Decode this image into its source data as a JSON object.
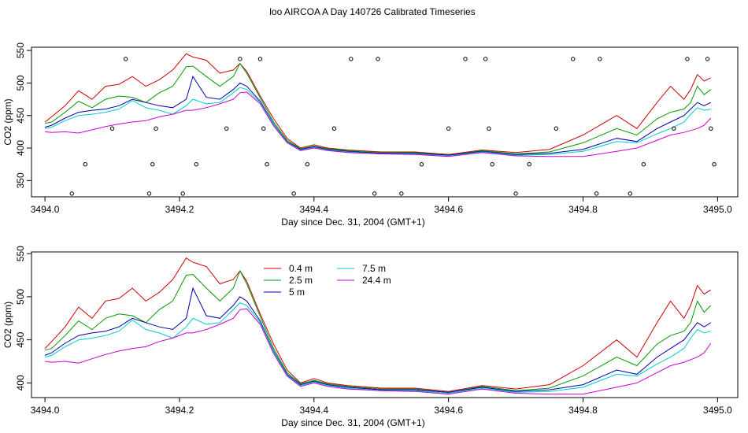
{
  "title": "loo AIRCOA A  Day 140726  Calibrated Timeseries",
  "x_ticks": [
    3494.0,
    3494.2,
    3494.4,
    3494.6,
    3494.8,
    3495.0
  ],
  "x_tick_labels": [
    "3494.0",
    "3494.2",
    "3494.4",
    "3494.6",
    "3494.8",
    "3495.0"
  ],
  "series_colors": {
    "0.4 m": "#cc0000",
    "2.5 m": "#009900",
    "5 m": "#0000aa",
    "7.5 m": "#00cccc",
    "24.4 m": "#cc00cc"
  },
  "chart_data": [
    {
      "type": "line",
      "title": "loo AIRCOA A  Day 140726  Calibrated Timeseries",
      "xlabel": "Day since Dec. 31, 2004 (GMT+1)",
      "ylabel": "CO2 (ppm)",
      "xlim": [
        3493.98,
        3495.03
      ],
      "ylim": [
        325,
        555
      ],
      "y_ticks": [
        350,
        400,
        450,
        500,
        550
      ],
      "y_tick_labels": [
        "350",
        "400",
        "450",
        "500",
        "550"
      ],
      "grid": false,
      "x": [
        3494.0,
        3494.01,
        3494.03,
        3494.05,
        3494.07,
        3494.09,
        3494.11,
        3494.13,
        3494.15,
        3494.17,
        3494.19,
        3494.21,
        3494.22,
        3494.24,
        3494.26,
        3494.28,
        3494.29,
        3494.3,
        3494.32,
        3494.34,
        3494.36,
        3494.38,
        3494.4,
        3494.42,
        3494.45,
        3494.5,
        3494.55,
        3494.6,
        3494.65,
        3494.7,
        3494.75,
        3494.8,
        3494.85,
        3494.88,
        3494.91,
        3494.93,
        3494.95,
        3494.96,
        3494.97,
        3494.98,
        3494.99
      ],
      "series": [
        {
          "name": "0.4 m",
          "values": [
            440,
            448,
            465,
            488,
            475,
            495,
            498,
            510,
            495,
            505,
            520,
            545,
            540,
            535,
            515,
            520,
            530,
            518,
            480,
            445,
            415,
            400,
            405,
            400,
            397,
            394,
            394,
            390,
            397,
            393,
            398,
            420,
            450,
            430,
            470,
            495,
            475,
            490,
            513,
            503,
            508
          ]
        },
        {
          "name": "2.5 m",
          "values": [
            438,
            440,
            455,
            472,
            462,
            475,
            480,
            478,
            470,
            485,
            495,
            525,
            526,
            510,
            495,
            510,
            530,
            515,
            477,
            440,
            412,
            399,
            403,
            399,
            396,
            393,
            393,
            389,
            396,
            391,
            394,
            408,
            430,
            420,
            445,
            455,
            460,
            470,
            495,
            482,
            490
          ]
        },
        {
          "name": "5 m",
          "values": [
            432,
            435,
            446,
            455,
            458,
            460,
            465,
            475,
            470,
            465,
            462,
            475,
            510,
            478,
            475,
            490,
            500,
            495,
            472,
            437,
            410,
            398,
            402,
            398,
            395,
            392,
            392,
            389,
            395,
            390,
            392,
            398,
            415,
            410,
            430,
            440,
            450,
            460,
            470,
            465,
            470
          ]
        },
        {
          "name": "7.5 m",
          "values": [
            430,
            432,
            442,
            450,
            452,
            455,
            460,
            473,
            462,
            458,
            452,
            465,
            475,
            468,
            470,
            485,
            493,
            490,
            470,
            436,
            409,
            397,
            401,
            397,
            394,
            391,
            391,
            388,
            394,
            389,
            390,
            395,
            410,
            408,
            422,
            430,
            440,
            452,
            462,
            458,
            460
          ]
        },
        {
          "name": "24.4 m",
          "values": [
            425,
            424,
            425,
            423,
            428,
            433,
            437,
            440,
            442,
            448,
            452,
            458,
            458,
            462,
            468,
            475,
            485,
            486,
            468,
            434,
            408,
            396,
            400,
            396,
            393,
            391,
            390,
            387,
            393,
            388,
            387,
            387,
            395,
            400,
            412,
            420,
            424,
            427,
            430,
            435,
            446
          ]
        }
      ],
      "flag_points": {
        "x": [
          3494.04,
          3494.06,
          3494.1,
          3494.12,
          3494.155,
          3494.16,
          3494.165,
          3494.205,
          3494.225,
          3494.27,
          3494.29,
          3494.32,
          3494.325,
          3494.33,
          3494.37,
          3494.39,
          3494.43,
          3494.455,
          3494.49,
          3494.495,
          3494.53,
          3494.56,
          3494.6,
          3494.625,
          3494.655,
          3494.66,
          3494.665,
          3494.7,
          3494.72,
          3494.76,
          3494.785,
          3494.82,
          3494.825,
          3494.87,
          3494.89,
          3494.935,
          3494.955,
          3494.985,
          3494.99,
          3494.995
        ],
        "y": [
          330,
          375,
          430,
          537,
          330,
          375,
          430,
          330,
          375,
          430,
          537,
          537,
          430,
          375,
          330,
          375,
          430,
          537,
          330,
          537,
          330,
          375,
          430,
          537,
          537,
          430,
          375,
          330,
          375,
          430,
          537,
          330,
          537,
          330,
          375,
          430,
          537,
          537,
          430,
          375
        ]
      }
    },
    {
      "type": "line",
      "xlabel": "Day since Dec. 31, 2004 (GMT+1)",
      "ylabel": "CO2 (ppm)",
      "xlim": [
        3493.98,
        3495.03
      ],
      "ylim": [
        383,
        552
      ],
      "y_ticks": [
        400,
        450,
        500,
        550
      ],
      "y_tick_labels": [
        "400",
        "450",
        "500",
        "550"
      ],
      "grid": false,
      "legend_position": "top-left",
      "legend": [
        "0.4 m",
        "2.5 m",
        "5 m",
        "7.5 m",
        "24.4 m"
      ],
      "x": [
        3494.0,
        3494.01,
        3494.03,
        3494.05,
        3494.07,
        3494.09,
        3494.11,
        3494.13,
        3494.15,
        3494.17,
        3494.19,
        3494.21,
        3494.22,
        3494.24,
        3494.26,
        3494.28,
        3494.29,
        3494.3,
        3494.32,
        3494.34,
        3494.36,
        3494.38,
        3494.4,
        3494.42,
        3494.45,
        3494.5,
        3494.55,
        3494.6,
        3494.65,
        3494.7,
        3494.75,
        3494.8,
        3494.85,
        3494.88,
        3494.91,
        3494.93,
        3494.95,
        3494.96,
        3494.97,
        3494.98,
        3494.99
      ],
      "series": [
        {
          "name": "0.4 m",
          "values": [
            440,
            448,
            465,
            488,
            475,
            495,
            498,
            510,
            495,
            505,
            520,
            545,
            540,
            535,
            515,
            520,
            530,
            518,
            480,
            445,
            415,
            400,
            405,
            400,
            397,
            394,
            394,
            390,
            397,
            393,
            398,
            420,
            450,
            430,
            470,
            495,
            475,
            490,
            513,
            503,
            508
          ]
        },
        {
          "name": "2.5 m",
          "values": [
            438,
            440,
            455,
            472,
            462,
            475,
            480,
            478,
            470,
            485,
            495,
            525,
            526,
            510,
            495,
            510,
            530,
            515,
            477,
            440,
            412,
            399,
            403,
            399,
            396,
            393,
            393,
            389,
            396,
            391,
            394,
            408,
            430,
            420,
            445,
            455,
            460,
            470,
            495,
            482,
            490
          ]
        },
        {
          "name": "5 m",
          "values": [
            432,
            435,
            446,
            455,
            458,
            460,
            465,
            475,
            470,
            465,
            462,
            475,
            510,
            478,
            475,
            490,
            500,
            495,
            472,
            437,
            410,
            398,
            402,
            398,
            395,
            392,
            392,
            389,
            395,
            390,
            392,
            398,
            415,
            410,
            430,
            440,
            450,
            460,
            470,
            465,
            470
          ]
        },
        {
          "name": "7.5 m",
          "values": [
            430,
            432,
            442,
            450,
            452,
            455,
            460,
            473,
            462,
            458,
            452,
            465,
            475,
            468,
            470,
            485,
            493,
            490,
            470,
            436,
            409,
            397,
            401,
            397,
            394,
            391,
            391,
            388,
            394,
            389,
            390,
            395,
            410,
            408,
            422,
            430,
            440,
            452,
            462,
            458,
            460
          ]
        },
        {
          "name": "24.4 m",
          "values": [
            425,
            424,
            425,
            423,
            428,
            433,
            437,
            440,
            442,
            448,
            452,
            458,
            458,
            462,
            468,
            475,
            485,
            486,
            468,
            434,
            408,
            396,
            400,
            396,
            393,
            391,
            390,
            387,
            393,
            388,
            387,
            387,
            395,
            400,
            412,
            420,
            424,
            427,
            430,
            435,
            446
          ]
        }
      ]
    }
  ]
}
